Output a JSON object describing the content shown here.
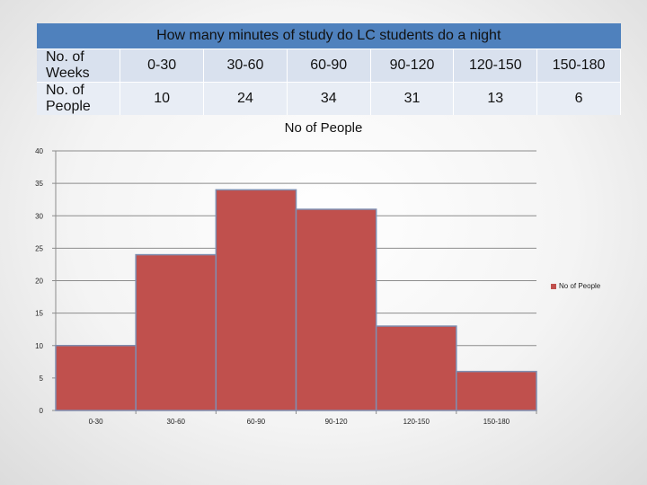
{
  "table": {
    "title": "How many minutes of study do LC students do a night",
    "row1": {
      "header": "No. of Weeks",
      "cells": [
        "0-30",
        "30-60",
        "60-90",
        "90-120",
        "120-150",
        "150-180"
      ]
    },
    "row2": {
      "header": "No. of People",
      "cells": [
        "10",
        "24",
        "34",
        "31",
        "13",
        "6"
      ]
    }
  },
  "chart_data": {
    "type": "bar",
    "title": "No of People",
    "categories": [
      "0-30",
      "30-60",
      "60-90",
      "90-120",
      "120-150",
      "150-180"
    ],
    "series": [
      {
        "name": "No of People",
        "values": [
          10,
          24,
          34,
          31,
          13,
          6
        ]
      }
    ],
    "ylim": [
      0,
      40
    ],
    "yticks": [
      0,
      5,
      10,
      15,
      20,
      25,
      30,
      35,
      40
    ],
    "grid": true,
    "legend_position": "right",
    "bar_color": "#c0504d",
    "bar_edge_color": "#7f8eb0"
  }
}
